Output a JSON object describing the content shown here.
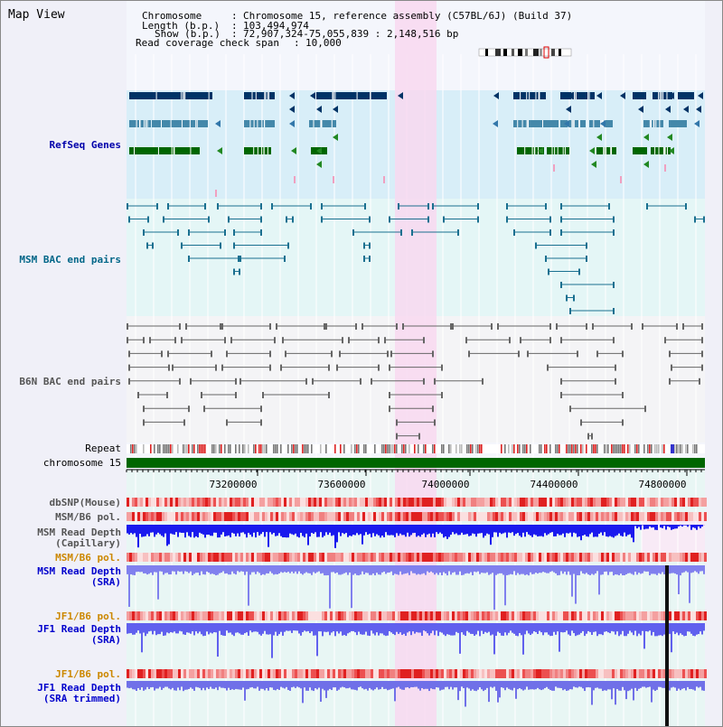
{
  "title": "Map View",
  "header": {
    "chromosome_key": "Chromosome",
    "chromosome_value": "Chromosome 15, reference assembly (C57BL/6J) (Build 37)",
    "length_key": "Length (b.p.)",
    "length_value": "103,494,974",
    "show_key": "Show (b.p.)",
    "show_value": "72,907,324-75,055,839 : 2,148,516 bp",
    "coverage_key": "Read coverage check span",
    "coverage_value": "10,000"
  },
  "tracks": {
    "refseq": "RefSeq Genes",
    "msm_bac": "MSM BAC end pairs",
    "b6n_bac": "B6N BAC end pairs",
    "repeat": "Repeat",
    "chromosome": "chromosome 15",
    "dbsnp": "dbSNP(Mouse)",
    "msm_b6_pol": "MSM/B6 pol.",
    "msm_depth_cap_1": "MSM Read Depth",
    "msm_depth_cap_2": "(Capillary)",
    "msm_b6_pol_2": "MSM/B6 pol.",
    "msm_depth_sra_1": "MSM Read Depth",
    "msm_depth_sra_2": "(SRA)",
    "jf1_b6_pol": "JF1/B6 pol.",
    "jf1_depth_sra_1": "JF1 Read Depth",
    "jf1_depth_sra_2": "(SRA)",
    "jf1_b6_pol_2": "JF1/B6 pol.",
    "jf1_depth_trim_1": "JF1 Read Depth",
    "jf1_depth_trim_2": "(SRA trimmed)"
  },
  "axis": {
    "ticks": [
      "73200000",
      "73600000",
      "74000000",
      "74400000",
      "74800000"
    ]
  },
  "colors": {
    "refseq_label": "#0000aa",
    "msm_label": "#006688",
    "gray_label": "#555555",
    "orange_label": "#cc8800",
    "blue_label": "#0000cc",
    "highlight": "#f8d8f0",
    "chromosome_bar": "#006600"
  }
}
